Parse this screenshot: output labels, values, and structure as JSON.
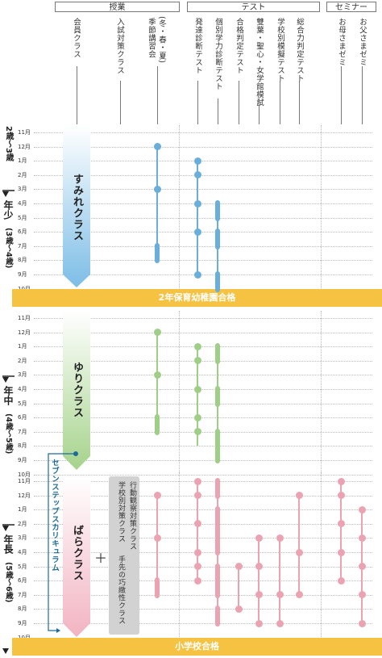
{
  "headers": {
    "lessons": "授業",
    "tests": "テスト",
    "seminars": "セミナー"
  },
  "columns": {
    "member_class": "会員クラス",
    "exam_prep_class": "入試対策クラス",
    "seasonal_paren": "(冬・春・夏)",
    "seasonal": "季節講習会",
    "dev_test": "発達診断テスト",
    "individual_test": "個別学力診断テスト",
    "pass_test": "合格判定テスト",
    "mock_exam": "雙葉・聖心・女学館模試",
    "school_mock": "学校別模擬テスト",
    "general_test": "総合力判定テスト",
    "mother_seminar": "お母さまゼミ",
    "father_seminar": "お父さまゼミ"
  },
  "months": [
    "11",
    "12",
    "1",
    "2",
    "3",
    "4",
    "5",
    "6",
    "7",
    "8",
    "9",
    "10"
  ],
  "month_suffix": "月",
  "ages": {
    "g1": {
      "years": "2歳〜3歳"
    },
    "g2": {
      "grade": "年少",
      "years": "(3歳〜4歳)"
    },
    "g3": {
      "grade": "年中",
      "years": "(4歳〜5歳)"
    },
    "g4": {
      "grade": "年長",
      "years": "(5歳〜6歳)"
    }
  },
  "classes": {
    "sumire": "すみれクラス",
    "yuri": "ゆりクラス",
    "bara": "ばらクラス"
  },
  "banners": {
    "b1": "2年保育幼稚園合格",
    "b2": "小学校合格"
  },
  "seven_steps": "セブンステップスカリキュラム",
  "plus_sign": "＋",
  "exam_classes": {
    "c1": "行動観察対策クラス",
    "c2": "学校別対策クラス",
    "c3": "手先の巧緻性クラス"
  },
  "colors": {
    "blue": "#6aaedb",
    "green": "#9fce86",
    "pink": "#eba3b2",
    "yellow": "#f5c242",
    "navy": "#1b6a9c"
  }
}
